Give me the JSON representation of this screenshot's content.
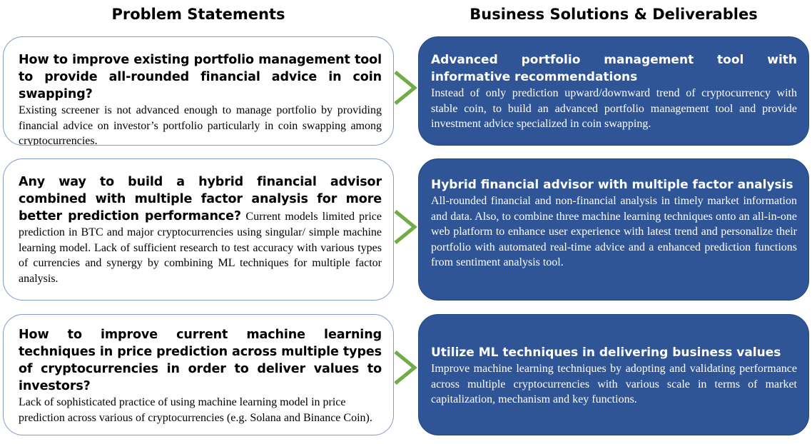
{
  "headers": {
    "left": "Problem Statements",
    "right": "Business Solutions & Deliverables"
  },
  "problems": [
    {
      "title": "How to improve existing portfolio management tool to provide all-rounded financial advice in coin swapping?",
      "body": "Existing screener is not advanced enough to manage portfolio by providing financial advice on investor’s portfolio particularly in coin swapping among cryptocurrencies."
    },
    {
      "title": "Any way to build a hybrid financial advisor combined with multiple factor analysis for more better prediction performance?",
      "body": "Current models limited price prediction in BTC and major cryptocurrencies using singular/ simple machine learning model. Lack of sufficient research to test accuracy with various types of currencies and synergy by combining ML techniques for multiple factor analysis."
    },
    {
      "title": "How to improve current machine learning techniques in price prediction across multiple types of cryptocurrencies in order to deliver values to investors?",
      "body": "Lack of sophisticated practice of using machine learning model in price prediction across various of cryptocurrencies (e.g. Solana and Binance Coin)."
    }
  ],
  "solutions": [
    {
      "title": "Advanced portfolio management tool with informative recommendations",
      "body": "Instead of only prediction upward/downward trend of cryptocurrency with stable coin, to build an advanced portfolio management tool and provide investment advice specialized in coin swapping."
    },
    {
      "title": "Hybrid financial advisor with multiple factor analysis",
      "body": "All-rounded financial and non-financial analysis in timely market information and data. Also, to combine three machine learning techniques onto an all-in-one web platform to enhance user experience with latest trend and personalize their portfolio with automated real-time advice and a enhanced prediction functions from sentiment analysis tool."
    },
    {
      "title": "Utilize ML techniques in delivering business values",
      "body": "Improve machine learning techniques by adopting and validating performance across multiple cryptocurrencies with various scale in terms of market capitalization, mechanism and key functions."
    }
  ],
  "colors": {
    "solution_fill": "#2f5597",
    "problem_border": "#7f9cc7",
    "arrow": "#70ad47"
  },
  "icons": {
    "connector": "chevron-right-icon"
  }
}
